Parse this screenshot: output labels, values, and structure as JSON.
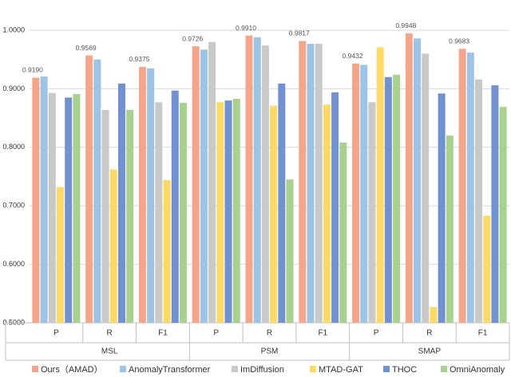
{
  "chart_data": {
    "type": "bar",
    "categories": [
      "P",
      "R",
      "F1",
      "P",
      "R",
      "F1",
      "P",
      "R",
      "F1"
    ],
    "groups": [
      "MSL",
      "PSM",
      "SMAP"
    ],
    "ylim": [
      0.5,
      1.0
    ],
    "yticks": [
      {
        "value": 0.5,
        "label": "0.5000"
      },
      {
        "value": 0.6,
        "label": "0.6000"
      },
      {
        "value": 0.7,
        "label": "0.7000"
      },
      {
        "value": 0.8,
        "label": "0.8000"
      },
      {
        "value": 0.9,
        "label": "0.9000"
      },
      {
        "value": 1.0,
        "label": "1.0000"
      }
    ],
    "grid": true,
    "legend": "bottom",
    "series": [
      {
        "name": "Ours（AMAD）",
        "color": "#f4a58a",
        "values": [
          0.919,
          0.9569,
          0.9375,
          0.9726,
          0.991,
          0.9817,
          0.9432,
          0.9948,
          0.9683
        ],
        "value_labels": [
          "0.9190",
          "0.9569",
          "0.9375",
          "0.9726",
          "0.9910",
          "0.9817",
          "0.9432",
          "0.9948",
          "0.9683"
        ]
      },
      {
        "name": "AnomalyTransformer",
        "color": "#9dc3e6",
        "values": [
          0.921,
          0.95,
          0.935,
          0.967,
          0.988,
          0.977,
          0.941,
          0.986,
          0.962
        ]
      },
      {
        "name": "ImDiffusion",
        "color": "#c9c9c9",
        "values": [
          0.893,
          0.864,
          0.877,
          0.98,
          0.974,
          0.977,
          0.877,
          0.96,
          0.916
        ]
      },
      {
        "name": "MTAD-GAT",
        "color": "#ffd966",
        "values": [
          0.732,
          0.762,
          0.744,
          0.877,
          0.871,
          0.873,
          0.971,
          0.527,
          0.683
        ]
      },
      {
        "name": "THOC",
        "color": "#7191d1",
        "values": [
          0.885,
          0.909,
          0.897,
          0.88,
          0.909,
          0.894,
          0.92,
          0.892,
          0.906
        ]
      },
      {
        "name": "OmniAnomaly",
        "color": "#a9d18e",
        "values": [
          0.891,
          0.864,
          0.876,
          0.883,
          0.745,
          0.808,
          0.924,
          0.82,
          0.869
        ]
      }
    ]
  }
}
